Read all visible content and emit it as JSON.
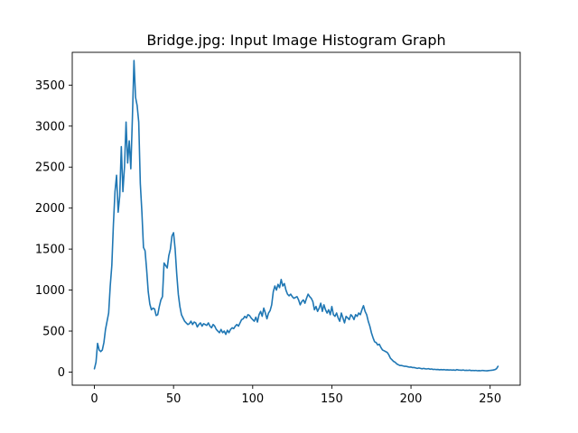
{
  "chart_data": {
    "type": "line",
    "title": "Bridge.jpg: Input Image Histogram Graph",
    "xlabel": "",
    "ylabel": "",
    "xlim": [
      -14,
      269
    ],
    "ylim": [
      -160,
      3900
    ],
    "x_ticks": [
      0,
      50,
      100,
      150,
      200,
      250
    ],
    "y_ticks": [
      0,
      500,
      1000,
      1500,
      2000,
      2500,
      3000,
      3500
    ],
    "grid": false,
    "line_color": "#1f77b4",
    "series": [
      {
        "points": [
          [
            0,
            40
          ],
          [
            1,
            120
          ],
          [
            2,
            350
          ],
          [
            3,
            270
          ],
          [
            4,
            250
          ],
          [
            5,
            270
          ],
          [
            6,
            360
          ],
          [
            7,
            520
          ],
          [
            8,
            620
          ],
          [
            9,
            720
          ],
          [
            10,
            1050
          ],
          [
            11,
            1300
          ],
          [
            12,
            1800
          ],
          [
            13,
            2200
          ],
          [
            14,
            2400
          ],
          [
            15,
            1950
          ],
          [
            16,
            2150
          ],
          [
            17,
            2750
          ],
          [
            18,
            2200
          ],
          [
            19,
            2500
          ],
          [
            20,
            3050
          ],
          [
            21,
            2550
          ],
          [
            22,
            2820
          ],
          [
            23,
            2480
          ],
          [
            24,
            3100
          ],
          [
            25,
            3800
          ],
          [
            26,
            3350
          ],
          [
            27,
            3250
          ],
          [
            28,
            3050
          ],
          [
            29,
            2300
          ],
          [
            30,
            1950
          ],
          [
            31,
            1520
          ],
          [
            32,
            1480
          ],
          [
            33,
            1250
          ],
          [
            34,
            980
          ],
          [
            35,
            830
          ],
          [
            36,
            760
          ],
          [
            37,
            780
          ],
          [
            38,
            770
          ],
          [
            39,
            690
          ],
          [
            40,
            700
          ],
          [
            41,
            800
          ],
          [
            42,
            880
          ],
          [
            43,
            920
          ],
          [
            44,
            1330
          ],
          [
            45,
            1300
          ],
          [
            46,
            1270
          ],
          [
            47,
            1420
          ],
          [
            48,
            1500
          ],
          [
            49,
            1660
          ],
          [
            50,
            1700
          ],
          [
            51,
            1500
          ],
          [
            52,
            1200
          ],
          [
            53,
            950
          ],
          [
            54,
            800
          ],
          [
            55,
            700
          ],
          [
            56,
            660
          ],
          [
            57,
            620
          ],
          [
            58,
            600
          ],
          [
            59,
            580
          ],
          [
            60,
            590
          ],
          [
            61,
            620
          ],
          [
            62,
            580
          ],
          [
            63,
            610
          ],
          [
            64,
            600
          ],
          [
            65,
            550
          ],
          [
            66,
            580
          ],
          [
            67,
            600
          ],
          [
            68,
            560
          ],
          [
            69,
            590
          ],
          [
            70,
            580
          ],
          [
            71,
            570
          ],
          [
            72,
            600
          ],
          [
            73,
            560
          ],
          [
            74,
            540
          ],
          [
            75,
            580
          ],
          [
            76,
            560
          ],
          [
            77,
            520
          ],
          [
            78,
            500
          ],
          [
            79,
            480
          ],
          [
            80,
            520
          ],
          [
            81,
            480
          ],
          [
            82,
            500
          ],
          [
            83,
            460
          ],
          [
            84,
            510
          ],
          [
            85,
            480
          ],
          [
            86,
            520
          ],
          [
            87,
            540
          ],
          [
            88,
            530
          ],
          [
            89,
            560
          ],
          [
            90,
            580
          ],
          [
            91,
            560
          ],
          [
            92,
            600
          ],
          [
            93,
            640
          ],
          [
            94,
            650
          ],
          [
            95,
            680
          ],
          [
            96,
            660
          ],
          [
            97,
            700
          ],
          [
            98,
            690
          ],
          [
            99,
            660
          ],
          [
            100,
            640
          ],
          [
            101,
            620
          ],
          [
            102,
            670
          ],
          [
            103,
            610
          ],
          [
            104,
            700
          ],
          [
            105,
            740
          ],
          [
            106,
            680
          ],
          [
            107,
            780
          ],
          [
            108,
            720
          ],
          [
            109,
            650
          ],
          [
            110,
            720
          ],
          [
            111,
            750
          ],
          [
            112,
            820
          ],
          [
            113,
            980
          ],
          [
            114,
            1050
          ],
          [
            115,
            1000
          ],
          [
            116,
            1070
          ],
          [
            117,
            1030
          ],
          [
            118,
            1130
          ],
          [
            119,
            1050
          ],
          [
            120,
            1080
          ],
          [
            121,
            1000
          ],
          [
            122,
            950
          ],
          [
            123,
            930
          ],
          [
            124,
            950
          ],
          [
            125,
            920
          ],
          [
            126,
            900
          ],
          [
            127,
            910
          ],
          [
            128,
            920
          ],
          [
            129,
            880
          ],
          [
            130,
            820
          ],
          [
            131,
            860
          ],
          [
            132,
            880
          ],
          [
            133,
            840
          ],
          [
            134,
            900
          ],
          [
            135,
            950
          ],
          [
            136,
            920
          ],
          [
            137,
            900
          ],
          [
            138,
            860
          ],
          [
            139,
            760
          ],
          [
            140,
            800
          ],
          [
            141,
            740
          ],
          [
            142,
            780
          ],
          [
            143,
            840
          ],
          [
            144,
            740
          ],
          [
            145,
            820
          ],
          [
            146,
            760
          ],
          [
            147,
            720
          ],
          [
            148,
            760
          ],
          [
            149,
            700
          ],
          [
            150,
            800
          ],
          [
            151,
            700
          ],
          [
            152,
            680
          ],
          [
            153,
            720
          ],
          [
            154,
            660
          ],
          [
            155,
            620
          ],
          [
            156,
            720
          ],
          [
            157,
            660
          ],
          [
            158,
            600
          ],
          [
            159,
            680
          ],
          [
            160,
            660
          ],
          [
            161,
            640
          ],
          [
            162,
            700
          ],
          [
            163,
            680
          ],
          [
            164,
            640
          ],
          [
            165,
            700
          ],
          [
            166,
            680
          ],
          [
            167,
            720
          ],
          [
            168,
            700
          ],
          [
            169,
            760
          ],
          [
            170,
            810
          ],
          [
            171,
            740
          ],
          [
            172,
            700
          ],
          [
            173,
            620
          ],
          [
            174,
            560
          ],
          [
            175,
            480
          ],
          [
            176,
            420
          ],
          [
            177,
            370
          ],
          [
            178,
            360
          ],
          [
            179,
            330
          ],
          [
            180,
            340
          ],
          [
            181,
            300
          ],
          [
            182,
            270
          ],
          [
            183,
            260
          ],
          [
            184,
            250
          ],
          [
            185,
            240
          ],
          [
            186,
            210
          ],
          [
            187,
            170
          ],
          [
            188,
            150
          ],
          [
            189,
            130
          ],
          [
            190,
            120
          ],
          [
            191,
            100
          ],
          [
            192,
            90
          ],
          [
            193,
            80
          ],
          [
            194,
            80
          ],
          [
            195,
            75
          ],
          [
            196,
            70
          ],
          [
            197,
            70
          ],
          [
            198,
            65
          ],
          [
            199,
            60
          ],
          [
            200,
            62
          ],
          [
            201,
            55
          ],
          [
            202,
            55
          ],
          [
            203,
            50
          ],
          [
            204,
            45
          ],
          [
            205,
            50
          ],
          [
            206,
            45
          ],
          [
            207,
            40
          ],
          [
            208,
            45
          ],
          [
            209,
            40
          ],
          [
            210,
            38
          ],
          [
            211,
            42
          ],
          [
            212,
            35
          ],
          [
            213,
            38
          ],
          [
            214,
            32
          ],
          [
            215,
            34
          ],
          [
            216,
            30
          ],
          [
            217,
            32
          ],
          [
            218,
            28
          ],
          [
            219,
            30
          ],
          [
            220,
            28
          ],
          [
            221,
            30
          ],
          [
            222,
            26
          ],
          [
            223,
            28
          ],
          [
            224,
            25
          ],
          [
            225,
            27
          ],
          [
            226,
            24
          ],
          [
            227,
            26
          ],
          [
            228,
            22
          ],
          [
            229,
            30
          ],
          [
            230,
            25
          ],
          [
            231,
            24
          ],
          [
            232,
            22
          ],
          [
            233,
            26
          ],
          [
            234,
            20
          ],
          [
            235,
            22
          ],
          [
            236,
            20
          ],
          [
            237,
            24
          ],
          [
            238,
            18
          ],
          [
            239,
            20
          ],
          [
            240,
            18
          ],
          [
            241,
            20
          ],
          [
            242,
            16
          ],
          [
            243,
            18
          ],
          [
            244,
            16
          ],
          [
            245,
            20
          ],
          [
            246,
            18
          ],
          [
            247,
            16
          ],
          [
            248,
            15
          ],
          [
            249,
            18
          ],
          [
            250,
            20
          ],
          [
            251,
            22
          ],
          [
            252,
            25
          ],
          [
            253,
            30
          ],
          [
            254,
            40
          ],
          [
            255,
            70
          ]
        ]
      }
    ]
  }
}
